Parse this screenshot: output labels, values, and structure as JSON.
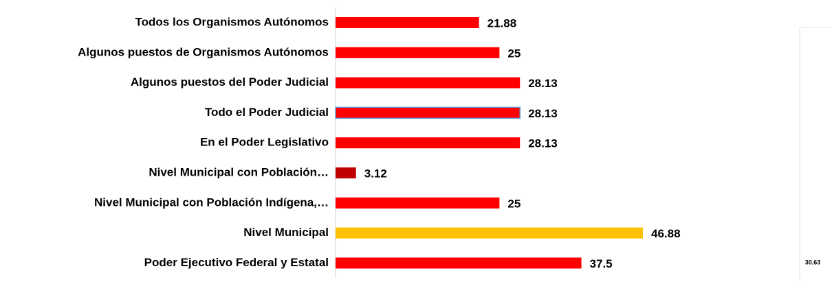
{
  "chart_data": {
    "type": "barh",
    "categories": [
      "Todos los Organismos Autónomos",
      "Algunos puestos de Organismos Autónomos",
      "Algunos puestos del Poder Judicial",
      "Todo el Poder Judicial",
      "En el Poder Legislativo",
      "Nivel Municipal con Población…",
      "Nivel Municipal con Población Indígena,…",
      "Nivel Municipal",
      "Poder Ejecutivo Federal y Estatal"
    ],
    "values": [
      21.88,
      25,
      28.13,
      28.13,
      28.13,
      3.12,
      25,
      46.88,
      37.5
    ],
    "colors": [
      "#ff0000",
      "#ff0000",
      "#ff0000",
      "#ff0000",
      "#ff0000",
      "#c00000",
      "#ff0000",
      "#ffc000",
      "#ff0000"
    ],
    "edge_colors": [
      null,
      null,
      null,
      "#5b9bd5",
      null,
      null,
      null,
      null,
      null
    ],
    "annotations": [
      "30.63"
    ]
  }
}
